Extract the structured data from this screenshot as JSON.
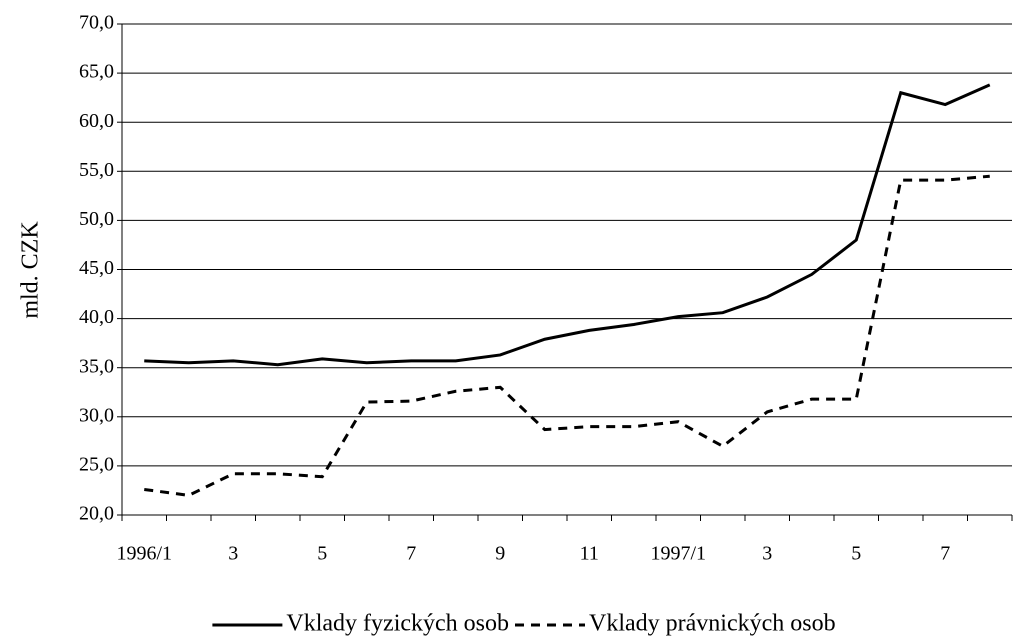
{
  "chart_data": {
    "type": "line",
    "y_label": "mld. CZK",
    "categories": [
      "1996/1",
      null,
      "3",
      null,
      "5",
      null,
      "7",
      null,
      "9",
      null,
      "11",
      null,
      "1997/1",
      null,
      "3",
      null,
      "5",
      null,
      "7",
      null
    ],
    "series": [
      {
        "name": "Vklady fyzických osob",
        "color": "#000000",
        "line_style": "solid",
        "values": [
          35.7,
          35.5,
          35.7,
          35.3,
          35.9,
          35.5,
          35.7,
          35.7,
          36.3,
          37.9,
          38.8,
          39.4,
          40.2,
          40.6,
          42.2,
          44.5,
          48.0,
          63.0,
          61.8,
          63.8
        ]
      },
      {
        "name": "Vklady právnických osob",
        "color": "#000000",
        "line_style": "dashed",
        "values": [
          22.6,
          22.0,
          24.2,
          24.2,
          23.9,
          31.5,
          31.6,
          32.6,
          33.0,
          28.7,
          29.0,
          29.0,
          29.5,
          27.0,
          30.5,
          31.8,
          31.8,
          54.1,
          54.1,
          54.5
        ]
      }
    ],
    "ylim": [
      20,
      70
    ],
    "yticks": [
      {
        "value": 20,
        "label": "20,0"
      },
      {
        "value": 25,
        "label": "25,0"
      },
      {
        "value": 30,
        "label": "30,0"
      },
      {
        "value": 35,
        "label": "35,0"
      },
      {
        "value": 40,
        "label": "40,0"
      },
      {
        "value": 45,
        "label": "45,0"
      },
      {
        "value": 50,
        "label": "50,0"
      },
      {
        "value": 55,
        "label": "55,0"
      },
      {
        "value": 60,
        "label": "60,0"
      },
      {
        "value": 65,
        "label": "65,0"
      },
      {
        "value": 70,
        "label": "70,0"
      }
    ],
    "grid": true,
    "legend": "bottom"
  }
}
